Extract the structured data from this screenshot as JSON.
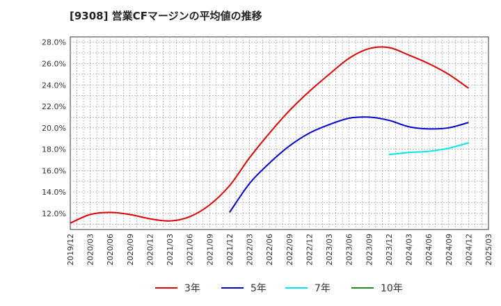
{
  "chart_data": {
    "type": "line",
    "title": "[9308]  営業CFマージンの平均値の推移",
    "x_ticks": [
      "2019/12",
      "2020/03",
      "2020/06",
      "2020/09",
      "2020/12",
      "2021/03",
      "2021/06",
      "2021/09",
      "2021/12",
      "2022/03",
      "2022/06",
      "2022/09",
      "2022/12",
      "2023/03",
      "2023/06",
      "2023/09",
      "2023/12",
      "2024/03",
      "2024/06",
      "2024/09",
      "2024/12",
      "2025/03"
    ],
    "y_ticks": [
      "12.0%",
      "14.0%",
      "16.0%",
      "18.0%",
      "20.0%",
      "22.0%",
      "24.0%",
      "26.0%",
      "28.0%"
    ],
    "ylim": [
      10.5,
      28.5
    ],
    "grid": true,
    "legend_position": "bottom",
    "series": [
      {
        "name": "3年",
        "color": "#dd0000",
        "x": [
          "2019/12",
          "2020/03",
          "2020/06",
          "2020/09",
          "2020/12",
          "2021/03",
          "2021/06",
          "2021/09",
          "2021/12",
          "2022/03",
          "2022/06",
          "2022/09",
          "2022/12",
          "2023/03",
          "2023/06",
          "2023/09",
          "2023/12",
          "2024/03",
          "2024/06",
          "2024/09",
          "2024/12"
        ],
        "values": [
          11.1,
          11.9,
          12.1,
          11.9,
          11.5,
          11.3,
          11.7,
          12.8,
          14.6,
          17.2,
          19.5,
          21.6,
          23.4,
          25.0,
          26.5,
          27.4,
          27.5,
          26.8,
          26.0,
          25.0,
          23.7
        ]
      },
      {
        "name": "5年",
        "color": "#0000cc",
        "x": [
          "2021/12",
          "2022/03",
          "2022/06",
          "2022/09",
          "2022/12",
          "2023/03",
          "2023/06",
          "2023/09",
          "2023/12",
          "2024/03",
          "2024/06",
          "2024/09",
          "2024/12"
        ],
        "values": [
          12.1,
          14.8,
          16.7,
          18.3,
          19.5,
          20.3,
          20.9,
          21.0,
          20.7,
          20.1,
          19.9,
          20.0,
          20.5
        ]
      },
      {
        "name": "7年",
        "color": "#00e5ee",
        "x": [
          "2023/12",
          "2024/03",
          "2024/06",
          "2024/09",
          "2024/12"
        ],
        "values": [
          17.5,
          17.7,
          17.8,
          18.1,
          18.6
        ]
      },
      {
        "name": "10年",
        "color": "#228b22",
        "x": [],
        "values": []
      }
    ]
  }
}
